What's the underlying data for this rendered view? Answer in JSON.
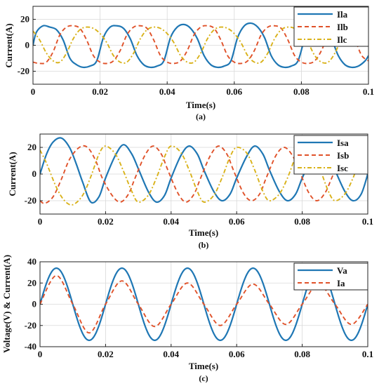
{
  "colors": {
    "blue": "#1f77b4",
    "orange": "#e0522a",
    "yellow": "#d9b21a"
  },
  "chart_data": [
    {
      "type": "line",
      "caption": "(a)",
      "xlabel": "Time(s)",
      "ylabel": "Current(A)",
      "xlim": [
        0,
        0.1
      ],
      "ylim": [
        -30,
        30
      ],
      "xticks": [
        0,
        0.02,
        0.04,
        0.06,
        0.08,
        0.1
      ],
      "xtick_labels": [
        "0",
        "0.02",
        "0.04",
        "0.06",
        "0.08",
        "0.1"
      ],
      "yticks": [
        -20,
        0,
        20
      ],
      "ytick_labels": [
        "-20",
        "0",
        "20"
      ],
      "grid": true,
      "legend_position": "top-right",
      "series": [
        {
          "name": "Ila",
          "style": "solid",
          "color": "#1f77b4",
          "x": [
            0,
            0.001,
            0.003,
            0.005,
            0.007,
            0.009,
            0.011,
            0.013,
            0.015,
            0.017,
            0.019,
            0.021,
            0.023,
            0.025,
            0.027,
            0.029,
            0.031,
            0.033,
            0.035,
            0.037,
            0.039,
            0.041,
            0.043,
            0.045,
            0.047,
            0.049,
            0.051,
            0.053,
            0.055,
            0.057,
            0.059,
            0.061,
            0.063,
            0.065,
            0.067,
            0.069,
            0.071,
            0.073,
            0.075,
            0.077,
            0.079,
            0.081,
            0.083,
            0.085,
            0.087,
            0.089,
            0.091,
            0.093,
            0.095,
            0.097,
            0.099,
            0.1
          ],
          "y": [
            0,
            10,
            15,
            14,
            12,
            4,
            -10,
            -15,
            -17,
            -16,
            -12,
            6,
            14,
            15,
            13,
            5,
            -8,
            -15,
            -17,
            -16,
            -12,
            6,
            14,
            16,
            13,
            5,
            -8,
            -15,
            -17,
            -16,
            -12,
            6,
            15,
            17,
            14,
            6,
            -8,
            -15,
            -17,
            -16,
            -12,
            5,
            14,
            16,
            14,
            5,
            -8,
            -15,
            -17,
            -16,
            -12,
            -8
          ]
        },
        {
          "name": "Ilb",
          "style": "dashed",
          "color": "#e0522a",
          "x": [
            0,
            0.002,
            0.004,
            0.006,
            0.008,
            0.01,
            0.012,
            0.014,
            0.016,
            0.018,
            0.02,
            0.022,
            0.024,
            0.026,
            0.028,
            0.03,
            0.032,
            0.034,
            0.036,
            0.038,
            0.04,
            0.042,
            0.044,
            0.046,
            0.048,
            0.05,
            0.052,
            0.054,
            0.056,
            0.058,
            0.06,
            0.062,
            0.064,
            0.066,
            0.068,
            0.07,
            0.072,
            0.074,
            0.076,
            0.078,
            0.08,
            0.082,
            0.084,
            0.086,
            0.088,
            0.09,
            0.092,
            0.094,
            0.096,
            0.098,
            0.1
          ],
          "y": [
            -13,
            -14,
            -13,
            -5,
            8,
            14,
            15,
            13,
            4,
            -8,
            -13,
            -14,
            -12,
            -4,
            8,
            14,
            15,
            13,
            4,
            -8,
            -13,
            -14,
            -12,
            -4,
            8,
            14,
            15,
            13,
            4,
            -8,
            -13,
            -14,
            -12,
            -4,
            8,
            14,
            15,
            13,
            4,
            -8,
            -13,
            -14,
            -12,
            -4,
            8,
            14,
            15,
            13,
            4,
            -8,
            -12
          ]
        },
        {
          "name": "Ilc",
          "style": "dashdot",
          "color": "#d9b21a",
          "x": [
            0,
            0.002,
            0.004,
            0.006,
            0.008,
            0.01,
            0.012,
            0.014,
            0.016,
            0.018,
            0.02,
            0.022,
            0.024,
            0.026,
            0.028,
            0.03,
            0.032,
            0.034,
            0.036,
            0.038,
            0.04,
            0.042,
            0.044,
            0.046,
            0.048,
            0.05,
            0.052,
            0.054,
            0.056,
            0.058,
            0.06,
            0.062,
            0.064,
            0.066,
            0.068,
            0.07,
            0.072,
            0.074,
            0.076,
            0.078,
            0.08,
            0.082,
            0.084,
            0.086,
            0.088,
            0.09,
            0.092,
            0.094,
            0.096,
            0.098,
            0.1
          ],
          "y": [
            11,
            4,
            -6,
            -12,
            -13,
            -6,
            5,
            12,
            14,
            13,
            9,
            2,
            -8,
            -13,
            -13,
            -6,
            5,
            12,
            14,
            13,
            9,
            2,
            -8,
            -13,
            -13,
            -6,
            5,
            12,
            14,
            13,
            9,
            2,
            -8,
            -13,
            -13,
            -6,
            5,
            12,
            14,
            13,
            9,
            2,
            -8,
            -13,
            -13,
            -6,
            5,
            12,
            14,
            13,
            10
          ]
        }
      ]
    },
    {
      "type": "line",
      "caption": "(b)",
      "xlabel": "Time(s)",
      "ylabel": "Current(A)",
      "xlim": [
        0,
        0.1
      ],
      "ylim": [
        -30,
        30
      ],
      "xticks": [
        0,
        0.02,
        0.04,
        0.06,
        0.08,
        0.1
      ],
      "xtick_labels": [
        "0",
        "0.02",
        "0.04",
        "0.06",
        "0.08",
        "0.1"
      ],
      "yticks": [
        -20,
        0,
        20
      ],
      "ytick_labels": [
        "-20",
        "0",
        "20"
      ],
      "grid": true,
      "legend_position": "top-right",
      "series": [
        {
          "name": "Isa",
          "style": "solid",
          "color": "#1f77b4",
          "x": [
            0,
            0.002,
            0.004,
            0.0065,
            0.009,
            0.011,
            0.013,
            0.0155,
            0.018,
            0.02,
            0.023,
            0.0255,
            0.028,
            0.03,
            0.033,
            0.0355,
            0.038,
            0.04,
            0.043,
            0.0455,
            0.048,
            0.05,
            0.053,
            0.0555,
            0.058,
            0.06,
            0.063,
            0.0655,
            0.068,
            0.07,
            0.073,
            0.0755,
            0.078,
            0.08,
            0.083,
            0.0855,
            0.088,
            0.09,
            0.093,
            0.0955,
            0.098,
            0.1
          ],
          "y": [
            0,
            15,
            24,
            27,
            20,
            8,
            -6,
            -21,
            -17,
            -3,
            14,
            22,
            15,
            4,
            -13,
            -21,
            -16,
            -3,
            14,
            21,
            15,
            3,
            -13,
            -20,
            -15,
            -3,
            13,
            21,
            15,
            3,
            -13,
            -20,
            -15,
            -3,
            13,
            20,
            14,
            3,
            -13,
            -20,
            -15,
            0
          ]
        },
        {
          "name": "Isb",
          "style": "dashed",
          "color": "#e0522a",
          "x": [
            0,
            0.0015,
            0.004,
            0.0065,
            0.009,
            0.012,
            0.0145,
            0.017,
            0.019,
            0.022,
            0.0245,
            0.027,
            0.029,
            0.032,
            0.0345,
            0.037,
            0.039,
            0.042,
            0.0445,
            0.047,
            0.049,
            0.052,
            0.0545,
            0.057,
            0.059,
            0.062,
            0.0645,
            0.067,
            0.069,
            0.072,
            0.0745,
            0.077,
            0.079,
            0.082,
            0.0845,
            0.087,
            0.089,
            0.092,
            0.0945,
            0.097,
            0.1
          ],
          "y": [
            -20,
            -22,
            -17,
            -4,
            11,
            20,
            20,
            10,
            -3,
            -16,
            -21,
            -15,
            -3,
            14,
            21,
            15,
            3,
            -14,
            -21,
            -15,
            -3,
            14,
            21,
            15,
            3,
            -14,
            -20,
            -15,
            -3,
            14,
            20,
            14,
            3,
            -14,
            -20,
            -14,
            -3,
            14,
            20,
            14,
            0
          ]
        },
        {
          "name": "Isc",
          "style": "dashdot",
          "color": "#d9b21a",
          "x": [
            0,
            0.002,
            0.005,
            0.0075,
            0.01,
            0.013,
            0.0155,
            0.018,
            0.02,
            0.023,
            0.0255,
            0.028,
            0.03,
            0.033,
            0.0355,
            0.038,
            0.04,
            0.043,
            0.0455,
            0.048,
            0.05,
            0.053,
            0.0555,
            0.058,
            0.06,
            0.063,
            0.0655,
            0.068,
            0.07,
            0.073,
            0.0755,
            0.078,
            0.08,
            0.083,
            0.0855,
            0.088,
            0.09,
            0.093,
            0.0955,
            0.098,
            0.1
          ],
          "y": [
            18,
            8,
            -10,
            -20,
            -23,
            -16,
            -2,
            15,
            21,
            15,
            2,
            -13,
            -21,
            -16,
            -3,
            13,
            21,
            16,
            3,
            -13,
            -21,
            -16,
            -3,
            13,
            20,
            16,
            3,
            -13,
            -20,
            -15,
            -3,
            13,
            20,
            15,
            3,
            -13,
            -20,
            -15,
            -3,
            13,
            18
          ]
        }
      ]
    },
    {
      "type": "line",
      "caption": "(c)",
      "xlabel": "Time(s)",
      "ylabel": "Voltage(V) & Current(A)",
      "xlim": [
        0,
        0.1
      ],
      "ylim": [
        -40,
        40
      ],
      "xticks": [
        0,
        0.02,
        0.04,
        0.06,
        0.08,
        0.1
      ],
      "xtick_labels": [
        "0",
        "0.02",
        "0.04",
        "0.06",
        "0.08",
        "0.1"
      ],
      "yticks": [
        -40,
        -20,
        0,
        20,
        40
      ],
      "ytick_labels": [
        "-40",
        "-20",
        "0",
        "20",
        "40"
      ],
      "grid": true,
      "legend_position": "top-right",
      "series": [
        {
          "name": "Va",
          "style": "solid",
          "color": "#1f77b4",
          "amplitude": 34,
          "frequency_hz": 50,
          "phase_deg": 0
        },
        {
          "name": "Ia",
          "style": "dashed",
          "color": "#e0522a",
          "x": [
            0,
            0.005,
            0.01,
            0.015,
            0.02,
            0.025,
            0.03,
            0.035,
            0.04,
            0.045,
            0.05,
            0.055,
            0.06,
            0.065,
            0.07,
            0.075,
            0.08,
            0.085,
            0.09,
            0.095,
            0.1
          ],
          "y": [
            0,
            27,
            0,
            -27,
            0,
            22,
            0,
            -21,
            0,
            20,
            0,
            -20,
            0,
            19,
            0,
            -19,
            0,
            19,
            0,
            -19,
            0
          ]
        }
      ]
    }
  ]
}
